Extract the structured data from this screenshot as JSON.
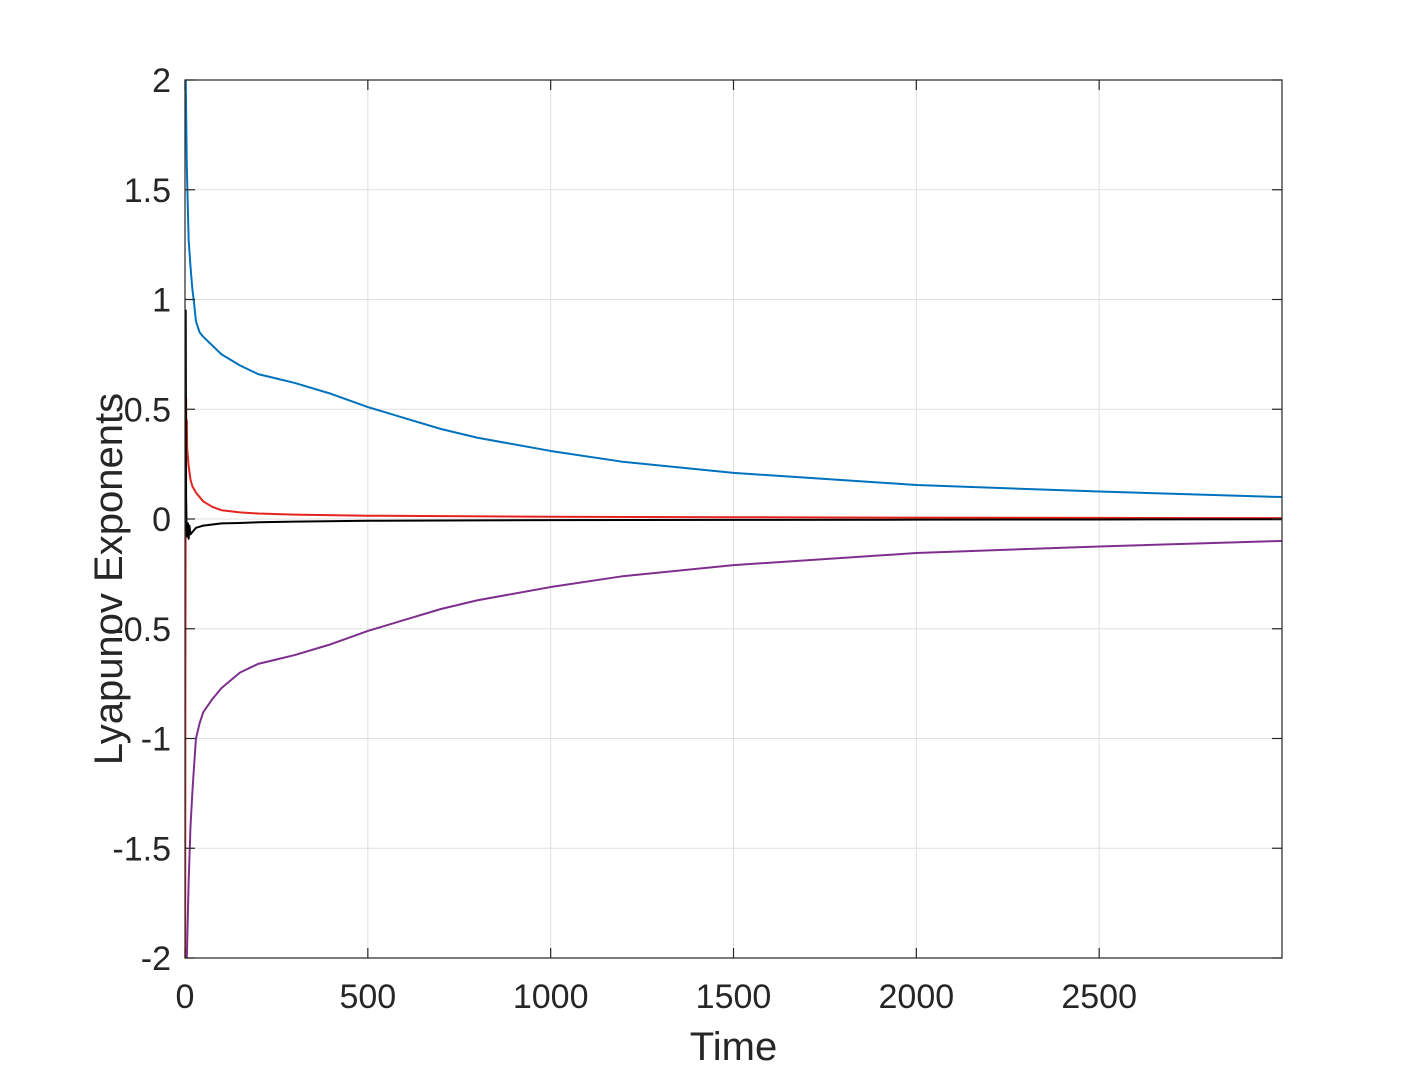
{
  "chart_data": {
    "type": "line",
    "title": "",
    "xlabel": "Time",
    "ylabel": "Lyapunov Exponents",
    "xlim": [
      0,
      3000
    ],
    "ylim": [
      -2,
      2
    ],
    "xticks": [
      0,
      500,
      1000,
      1500,
      2000,
      2500
    ],
    "xtick_labels": [
      "0",
      "500",
      "1000",
      "1500",
      "2000",
      "2500"
    ],
    "yticks": [
      -2,
      -1.5,
      -1,
      -0.5,
      0,
      0.5,
      1,
      1.5,
      2
    ],
    "ytick_labels": [
      "-2",
      "-1.5",
      "-1",
      "-0.5",
      "0",
      "0.5",
      "1",
      "1.5",
      "2"
    ],
    "grid": true,
    "legend": "none",
    "series": [
      {
        "color": "#0072BD",
        "x": [
          2,
          5,
          10,
          15,
          20,
          25,
          30,
          40,
          50,
          75,
          100,
          150,
          200,
          250,
          300,
          400,
          500,
          600,
          700,
          800,
          1000,
          1200,
          1500,
          2000,
          2500,
          3000
        ],
        "y": [
          2.0,
          1.6,
          1.27,
          1.15,
          1.05,
          0.98,
          0.9,
          0.85,
          0.83,
          0.79,
          0.75,
          0.7,
          0.66,
          0.64,
          0.62,
          0.57,
          0.51,
          0.46,
          0.41,
          0.37,
          0.31,
          0.26,
          0.21,
          0.155,
          0.125,
          0.1
        ]
      },
      {
        "color": "#D95319",
        "stroke": "#E4231F",
        "x": [
          0.5,
          1,
          2,
          3,
          4,
          5,
          6,
          8,
          10,
          15,
          20,
          30,
          40,
          50,
          75,
          100,
          150,
          200,
          300,
          500,
          1000,
          1500,
          2000,
          2500,
          3000
        ],
        "y": [
          -2.0,
          -0.8,
          0.2,
          0.55,
          0.3,
          0.45,
          0.32,
          0.28,
          0.24,
          0.18,
          0.15,
          0.12,
          0.1,
          0.08,
          0.055,
          0.04,
          0.03,
          0.025,
          0.02,
          0.015,
          0.01,
          0.008,
          0.006,
          0.005,
          0.004
        ]
      },
      {
        "color": "#000000",
        "x": [
          1,
          2,
          3,
          4,
          5,
          6,
          8,
          10,
          12,
          15,
          20,
          25,
          30,
          40,
          50,
          75,
          100,
          150,
          200,
          300,
          500,
          1000,
          1500,
          2000,
          2500,
          3000
        ],
        "y": [
          0.5,
          0.95,
          0.1,
          0.0,
          -0.08,
          -0.05,
          -0.02,
          -0.09,
          -0.03,
          -0.07,
          -0.06,
          -0.05,
          -0.04,
          -0.035,
          -0.03,
          -0.025,
          -0.02,
          -0.018,
          -0.015,
          -0.012,
          -0.008,
          -0.005,
          -0.004,
          -0.003,
          -0.002,
          -0.001
        ]
      },
      {
        "color": "#7E2F8E",
        "x": [
          5,
          10,
          15,
          20,
          25,
          30,
          40,
          50,
          75,
          100,
          150,
          200,
          250,
          300,
          400,
          500,
          600,
          700,
          800,
          1000,
          1200,
          1500,
          2000,
          2500,
          3000
        ],
        "y": [
          -2.0,
          -1.65,
          -1.4,
          -1.25,
          -1.12,
          -1.0,
          -0.93,
          -0.88,
          -0.82,
          -0.77,
          -0.7,
          -0.66,
          -0.64,
          -0.62,
          -0.57,
          -0.51,
          -0.46,
          -0.41,
          -0.37,
          -0.31,
          -0.26,
          -0.21,
          -0.155,
          -0.125,
          -0.1
        ]
      }
    ]
  }
}
